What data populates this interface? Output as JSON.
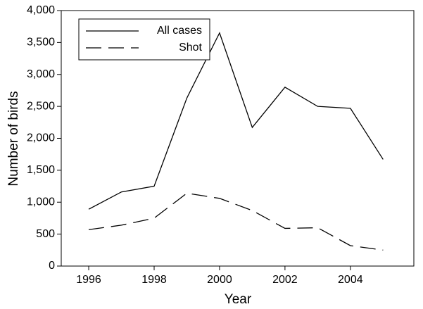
{
  "chart_data": {
    "type": "line",
    "x_label": "Year",
    "y_label": "Number of birds",
    "x": [
      1996,
      1997,
      1998,
      1999,
      2000,
      2001,
      2002,
      2003,
      2004,
      2005
    ],
    "series": [
      {
        "name": "All cases",
        "color": "#000000",
        "line_style": "solid",
        "values": [
          890,
          1160,
          1250,
          2630,
          3650,
          2170,
          2800,
          2500,
          2470,
          1670
        ]
      },
      {
        "name": "Shot",
        "color": "#000000",
        "line_style": "dashed",
        "values": [
          570,
          640,
          750,
          1140,
          1060,
          870,
          590,
          600,
          320,
          250
        ]
      }
    ],
    "xlim": [
      1995.16,
      2005.94
    ],
    "xticks": [
      1996,
      1998,
      2000,
      2002,
      2004
    ],
    "ylim": [
      0,
      4000
    ],
    "yticks": [
      0,
      500,
      {
        "value": 1000,
        "label": "1,000"
      },
      {
        "value": 1500,
        "label": "1,500"
      },
      {
        "value": 2000,
        "label": "2,000"
      },
      {
        "value": 2500,
        "label": "2,500"
      },
      {
        "value": 3000,
        "label": "3,000"
      },
      {
        "value": 3500,
        "label": "3,500"
      },
      {
        "value": 4000,
        "label": "4,000"
      }
    ],
    "legend": "upper left",
    "grid": false
  }
}
